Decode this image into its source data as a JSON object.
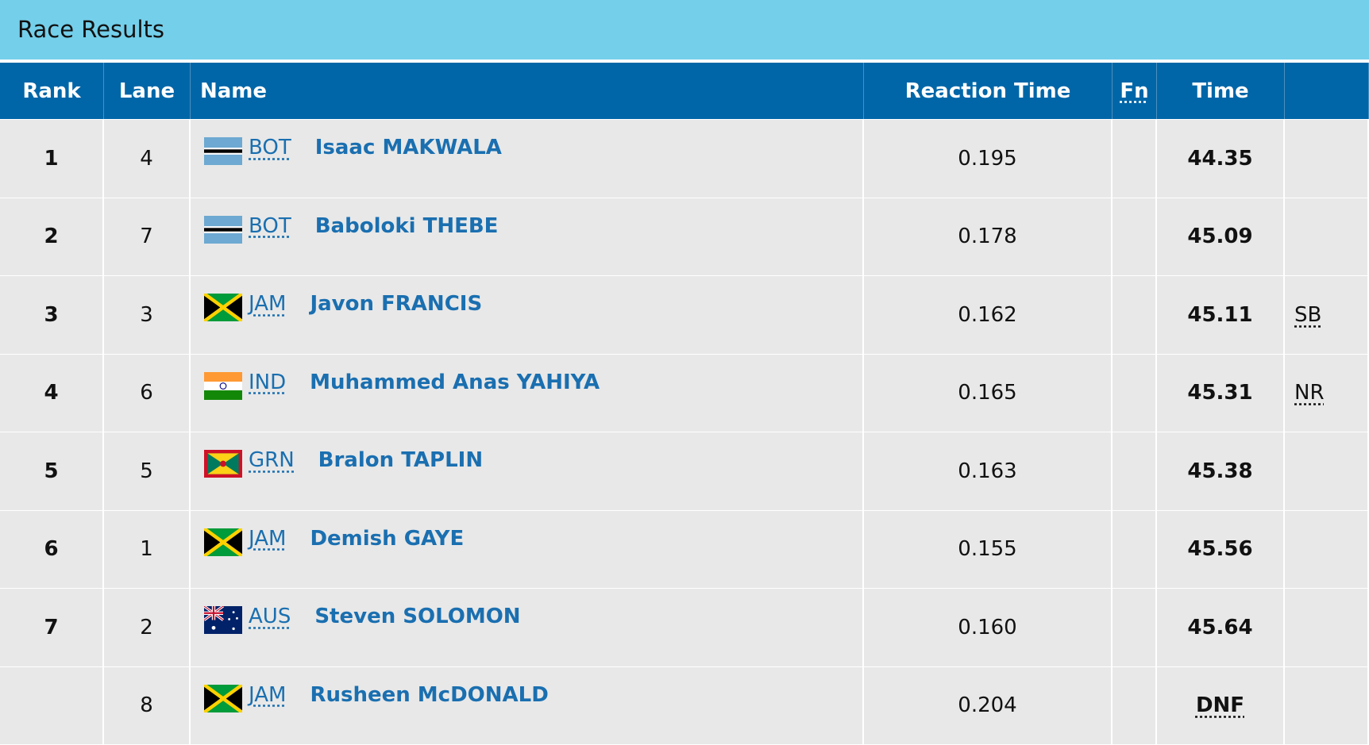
{
  "header": {
    "title": "Race Results"
  },
  "table": {
    "columns": [
      "Rank",
      "Lane",
      "Name",
      "Reaction Time",
      "Fn",
      "Time"
    ],
    "rows": [
      {
        "rank": 1,
        "lane": 4,
        "country": "BOT",
        "name": "Isaac MAKWALA",
        "reaction": "0.195",
        "time": "44.35",
        "note": null
      },
      {
        "rank": 2,
        "lane": 7,
        "country": "BOT",
        "name": "Baboloki THEBE",
        "reaction": "0.178",
        "time": "45.09",
        "note": null
      },
      {
        "rank": 3,
        "lane": 3,
        "country": "JAM",
        "name": "Javon FRANCIS",
        "reaction": "0.162",
        "time": "45.11",
        "note": "SB"
      },
      {
        "rank": 4,
        "lane": 6,
        "country": "IND",
        "name": "Muhammed Anas YAHIYA",
        "reaction": "0.165",
        "time": "45.31",
        "note": "NR"
      },
      {
        "rank": 5,
        "lane": 5,
        "country": "GRN",
        "name": "Bralon TAPLIN",
        "reaction": "0.163",
        "time": "45.38",
        "note": null
      },
      {
        "rank": 6,
        "lane": 1,
        "country": "JAM",
        "name": "Demish GAYE",
        "reaction": "0.155",
        "time": "45.56",
        "note": null
      },
      {
        "rank": 7,
        "lane": 2,
        "country": "AUS",
        "name": "Steven SOLOMON",
        "reaction": "0.160",
        "time": "45.64",
        "note": null
      },
      {
        "rank": null,
        "lane": 8,
        "country": "JAM",
        "name": "Rusheen McDONALD",
        "reaction": "0.204",
        "time": "DNF",
        "note": null
      }
    ]
  }
}
